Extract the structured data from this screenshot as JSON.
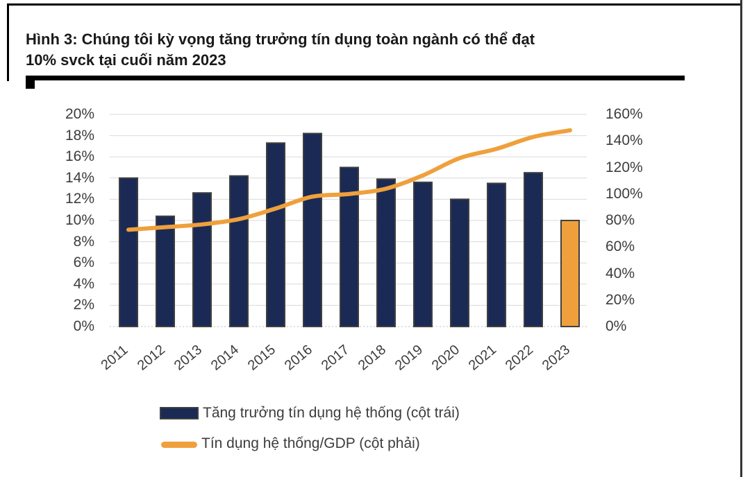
{
  "header": {
    "title_lines": [
      "Hình 3: Chúng tôi kỳ vọng tăng trưởng tín dụng toàn ngành có thể đạt",
      "10% svck tại cuối năm 2023"
    ]
  },
  "colors": {
    "bar_fill": "#1a2a55",
    "bar_border": "#404040",
    "bar_highlight": "#efa03c",
    "line": "#efa03c",
    "grid": "#d9d9d9",
    "baseline": "#bfbfbf",
    "axis_text": "#3d3d3d",
    "title_text": "#1a1a1a",
    "rule": "#000000",
    "right_rule": "#333333"
  },
  "chart_data": {
    "type": "combo",
    "title": "Hình 3: Chúng tôi kỳ vọng tăng trưởng tín dụng toàn ngành có thể đạt 10% svck tại cuối năm 2023",
    "categories": [
      "2011",
      "2012",
      "2013",
      "2014",
      "2015",
      "2016",
      "2017",
      "2018",
      "2019",
      "2020",
      "2021",
      "2022",
      "2023"
    ],
    "series": [
      {
        "name": "Tăng trưởng tín dụng hệ thống (cột trái)",
        "type": "bar",
        "axis": "left",
        "unit": "%",
        "values": [
          14.0,
          10.4,
          12.6,
          14.2,
          17.3,
          18.2,
          15.0,
          13.9,
          13.6,
          12.0,
          13.5,
          14.5,
          10.0
        ],
        "highlight_index": 12
      },
      {
        "name": "Tín dụng hệ thống/GDP (cột phải)",
        "type": "line",
        "axis": "right",
        "unit": "%",
        "values": [
          73,
          75,
          77,
          81,
          89,
          98,
          100,
          104,
          114,
          127,
          134,
          143,
          148
        ]
      }
    ],
    "left_axis": {
      "min": 0,
      "max": 20,
      "step": 2,
      "tick_labels": [
        "0%",
        "2%",
        "4%",
        "6%",
        "8%",
        "10%",
        "12%",
        "14%",
        "16%",
        "18%",
        "20%"
      ]
    },
    "right_axis": {
      "min": 0,
      "max": 160,
      "step": 20,
      "tick_labels": [
        "0%",
        "20%",
        "40%",
        "60%",
        "80%",
        "100%",
        "120%",
        "140%",
        "160%"
      ]
    },
    "grid": true,
    "legend_position": "bottom"
  },
  "legend": {
    "items": [
      {
        "label": "Tăng trưởng tín dụng hệ thống (cột trái)",
        "swatch": "bar"
      },
      {
        "label": "Tín dụng hệ thống/GDP (cột phải)",
        "swatch": "line"
      }
    ]
  }
}
